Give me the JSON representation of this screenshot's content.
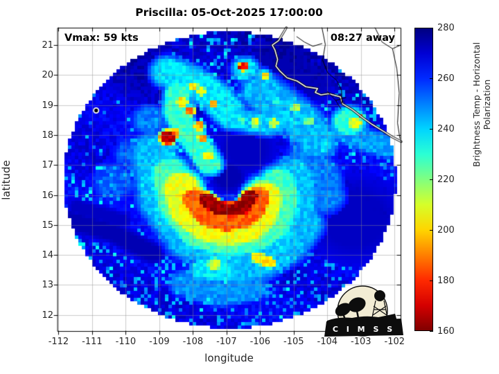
{
  "figure": {
    "title": "Priscilla: 05-Oct-2025 17:00:00",
    "vmax_label": "Vmax: 59 kts",
    "eta_label": "08:27 away"
  },
  "axes": {
    "xlabel": "longitude",
    "ylabel": "latitude",
    "xticks": [
      -112,
      -111,
      -110,
      -109,
      -108,
      -107,
      -106,
      -105,
      -104,
      -103,
      -102
    ],
    "yticks": [
      12,
      13,
      14,
      15,
      16,
      17,
      18,
      19,
      20,
      21
    ],
    "xlim": [
      -112.03,
      -101.82
    ],
    "ylim": [
      11.46,
      21.58
    ],
    "grid_color": "#8c8c8c"
  },
  "colorbar": {
    "label": "Brightness Temp - Horizontal Polarization",
    "ticks": [
      160,
      180,
      200,
      220,
      240,
      260,
      280
    ],
    "min": 160,
    "max": 280,
    "colormap": "jet_reversed"
  },
  "logo": {
    "name": "CIMSS",
    "text": "C I M S S",
    "bg": "#f2ecd4",
    "ink": "#0d0d0d"
  },
  "chart_data": {
    "type": "heatmap",
    "title": "Priscilla: 05-Oct-2025 17:00:00",
    "units": "K",
    "storm": {
      "name": "Priscilla",
      "datetime": "05-Oct-2025 17:00:00",
      "vmax_kts": 59,
      "overpass_offset": "08:27 away"
    },
    "value_range": [
      160,
      280
    ],
    "swath": {
      "center": [
        -106.9,
        16.5
      ],
      "radius_deg": 4.95
    },
    "background_temp": 266.5,
    "features": {
      "warm": [
        {
          "pos": [
            -106.95,
            16.62
          ],
          "w": 0.34,
          "t": 274
        },
        {
          "pts": [
            [
              -111.85,
              15.2
            ],
            [
              -110.4,
              14.75
            ],
            [
              -109.2,
              14.05
            ]
          ],
          "w": 0.22,
          "t": 274
        },
        {
          "pts": [
            [
              -111.45,
              15.6
            ],
            [
              -110.1,
              15.15
            ]
          ],
          "w": 0.16,
          "t": 272
        },
        {
          "pos": [
            -105.35,
            20.5
          ],
          "w": 0.6,
          "t": 274
        },
        {
          "pos": [
            -104.5,
            19.8
          ],
          "w": 0.45,
          "t": 273
        },
        {
          "pos": [
            -103.2,
            15.2
          ],
          "w": 0.9,
          "t": 272
        },
        {
          "pos": [
            -106.4,
            17.55
          ],
          "w": 0.55,
          "t": 272
        },
        {
          "pos": [
            -109.6,
            20.2
          ],
          "w": 0.6,
          "t": 271
        }
      ],
      "cold": [
        {
          "pts": [
            [
              -107.6,
              15.85
            ],
            [
              -107.25,
              15.55
            ],
            [
              -106.85,
              15.5
            ],
            [
              -106.5,
              15.6
            ],
            [
              -106.3,
              15.95
            ]
          ],
          "w": 0.2,
          "t": 163
        },
        {
          "pts": [
            [
              -107.95,
              15.85
            ],
            [
              -107.55,
              15.3
            ],
            [
              -107.0,
              15.15
            ],
            [
              -106.5,
              15.25
            ],
            [
              -106.2,
              15.55
            ],
            [
              -106.08,
              15.9
            ]
          ],
          "w": 0.33,
          "t": 186
        },
        {
          "pts": [
            [
              -108.35,
              16.2
            ],
            [
              -108.15,
              15.5
            ],
            [
              -107.6,
              15.0
            ],
            [
              -107.0,
              14.85
            ],
            [
              -106.4,
              14.95
            ],
            [
              -106.0,
              15.35
            ],
            [
              -105.88,
              15.9
            ]
          ],
          "w": 0.48,
          "t": 207
        },
        {
          "pts": [
            [
              -108.7,
              16.7
            ],
            [
              -108.5,
              15.6
            ],
            [
              -107.85,
              14.75
            ],
            [
              -107.0,
              14.5
            ],
            [
              -106.2,
              14.62
            ],
            [
              -105.6,
              15.05
            ],
            [
              -105.38,
              15.85
            ],
            [
              -105.45,
              16.35
            ]
          ],
          "w": 0.45,
          "t": 227
        },
        {
          "pts": [
            [
              -109.15,
              17.4
            ],
            [
              -108.95,
              15.8
            ],
            [
              -108.15,
              14.55
            ],
            [
              -107.0,
              14.12
            ],
            [
              -105.9,
              14.3
            ],
            [
              -105.15,
              14.95
            ],
            [
              -104.92,
              15.85
            ],
            [
              -105.0,
              16.6
            ]
          ],
          "w": 0.5,
          "t": 242
        },
        {
          "pts": [
            [
              -108.45,
              19.35
            ],
            [
              -108.5,
              18.75
            ],
            [
              -108.2,
              18.1
            ],
            [
              -107.75,
              17.5
            ],
            [
              -107.5,
              17.05
            ]
          ],
          "w": 0.3,
          "t": 229
        },
        {
          "pos": [
            -108.75,
            17.92
          ],
          "w": 0.2,
          "t": 167
        },
        {
          "pos": [
            -108.55,
            18.05
          ],
          "w": 0.14,
          "t": 196
        },
        {
          "pos": [
            -108.1,
            18.8
          ],
          "w": 0.13,
          "t": 187
        },
        {
          "pos": [
            -108.32,
            19.1
          ],
          "w": 0.14,
          "t": 203
        },
        {
          "pos": [
            -107.82,
            18.3
          ],
          "w": 0.13,
          "t": 196
        },
        {
          "pos": [
            -107.72,
            17.9
          ],
          "w": 0.12,
          "t": 192
        },
        {
          "pos": [
            -107.55,
            17.3
          ],
          "w": 0.12,
          "t": 203
        },
        {
          "pts": [
            [
              -108.75,
              20.1
            ],
            [
              -108.05,
              19.8
            ],
            [
              -107.35,
              19.3
            ],
            [
              -106.95,
              18.8
            ]
          ],
          "w": 0.38,
          "t": 238
        },
        {
          "pos": [
            -108.0,
            19.62
          ],
          "w": 0.13,
          "t": 201
        },
        {
          "pos": [
            -107.75,
            19.45
          ],
          "w": 0.12,
          "t": 207
        },
        {
          "pos": [
            -107.38,
            19.05
          ],
          "w": 0.1,
          "t": 194
        },
        {
          "pos": [
            -106.5,
            20.28
          ],
          "w": 0.12,
          "t": 172
        },
        {
          "pos": [
            -106.45,
            20.2
          ],
          "w": 0.3,
          "t": 239
        },
        {
          "pos": [
            -105.85,
            20.0
          ],
          "w": 0.1,
          "t": 196
        },
        {
          "pos": [
            -105.9,
            19.95
          ],
          "w": 0.2,
          "t": 241
        },
        {
          "pts": [
            [
              -106.9,
              18.55
            ],
            [
              -106.3,
              18.45
            ],
            [
              -105.75,
              18.35
            ],
            [
              -105.3,
              18.55
            ]
          ],
          "w": 0.28,
          "t": 241
        },
        {
          "pos": [
            -106.15,
            18.42
          ],
          "w": 0.12,
          "t": 210
        },
        {
          "pos": [
            -105.6,
            18.4
          ],
          "w": 0.12,
          "t": 212
        },
        {
          "pos": [
            -106.55,
            18.5
          ],
          "w": 0.1,
          "t": 226
        },
        {
          "pts": [
            [
              -105.95,
              19.45
            ],
            [
              -105.3,
              18.9
            ],
            [
              -104.7,
              18.4
            ],
            [
              -104.3,
              17.8
            ]
          ],
          "w": 0.45,
          "t": 243
        },
        {
          "pos": [
            -104.95,
            18.9
          ],
          "w": 0.12,
          "t": 215
        },
        {
          "pos": [
            -104.55,
            18.45
          ],
          "w": 0.12,
          "t": 221
        },
        {
          "pos": [
            -105.5,
            19.1
          ],
          "w": 0.1,
          "t": 226
        },
        {
          "pos": [
            -103.35,
            18.45
          ],
          "w": 0.38,
          "t": 231
        },
        {
          "pos": [
            -103.18,
            18.4
          ],
          "w": 0.17,
          "t": 209
        },
        {
          "pos": [
            -103.0,
            18.62
          ],
          "w": 0.07,
          "t": 183
        },
        {
          "pts": [
            [
              -103.6,
              18.15
            ],
            [
              -102.75,
              17.78
            ],
            [
              -102.2,
              17.62
            ]
          ],
          "w": 0.28,
          "t": 246
        },
        {
          "pts": [
            [
              -104.6,
              17.3
            ],
            [
              -104.15,
              16.6
            ],
            [
              -104.05,
              15.95
            ]
          ],
          "w": 0.4,
          "t": 250
        },
        {
          "pts": [
            [
              -106.7,
              13.55
            ],
            [
              -105.95,
              13.75
            ],
            [
              -105.2,
              14.25
            ],
            [
              -104.68,
              15.0
            ]
          ],
          "w": 0.42,
          "t": 243
        },
        {
          "pts": [
            [
              -106.08,
              13.92
            ],
            [
              -105.72,
              13.74
            ]
          ],
          "w": 0.15,
          "t": 202
        },
        {
          "pos": [
            -107.35,
            13.7
          ],
          "w": 0.17,
          "t": 212
        },
        {
          "pts": [
            [
              -107.75,
              13.52
            ],
            [
              -107.05,
              13.45
            ]
          ],
          "w": 0.26,
          "t": 237
        },
        {
          "pts": [
            [
              -108.25,
              13.05
            ],
            [
              -107.2,
              12.72
            ],
            [
              -106.2,
              12.92
            ]
          ],
          "w": 0.32,
          "t": 248
        },
        {
          "pos": [
            -110.35,
            16.45
          ],
          "w": 0.45,
          "t": 255
        },
        {
          "pos": [
            -109.75,
            17.35
          ],
          "w": 0.4,
          "t": 254
        },
        {
          "pos": [
            -109.3,
            18.5
          ],
          "w": 0.35,
          "t": 250
        },
        {
          "pos": [
            -106.0,
            16.3
          ],
          "w": 0.3,
          "t": 248
        }
      ]
    },
    "coastline": [
      [
        -105.22,
        21.58
      ],
      [
        -105.45,
        21.15
      ],
      [
        -105.64,
        21.0
      ],
      [
        -105.56,
        20.84
      ],
      [
        -105.48,
        20.52
      ],
      [
        -105.53,
        20.3
      ],
      [
        -105.4,
        20.12
      ],
      [
        -105.2,
        19.91
      ],
      [
        -104.9,
        19.8
      ],
      [
        -104.64,
        19.61
      ],
      [
        -104.29,
        19.55
      ],
      [
        -104.36,
        19.42
      ],
      [
        -104.19,
        19.34
      ],
      [
        -103.96,
        19.38
      ],
      [
        -103.61,
        19.27
      ],
      [
        -103.55,
        19.04
      ],
      [
        -103.26,
        18.85
      ],
      [
        -102.95,
        18.58
      ],
      [
        -102.66,
        18.35
      ],
      [
        -102.31,
        18.11
      ],
      [
        -102.06,
        17.93
      ],
      [
        -101.8,
        17.78
      ]
    ],
    "borders": [
      [
        [
          -104.16,
          21.58
        ],
        [
          -104.06,
          21.02
        ],
        [
          -104.14,
          20.5
        ],
        [
          -103.99,
          20.08
        ],
        [
          -103.72,
          19.82
        ],
        [
          -103.58,
          19.5
        ],
        [
          -103.56,
          19.06
        ]
      ],
      [
        [
          -102.58,
          21.58
        ],
        [
          -102.37,
          21.1
        ],
        [
          -102.06,
          20.88
        ],
        [
          -101.82,
          21.0
        ]
      ],
      [
        [
          -102.06,
          20.88
        ],
        [
          -101.93,
          20.2
        ],
        [
          -101.86,
          19.4
        ],
        [
          -101.91,
          18.4
        ],
        [
          -101.84,
          17.88
        ]
      ],
      [
        [
          -104.91,
          21.28
        ],
        [
          -104.68,
          21.1
        ],
        [
          -104.43,
          20.96
        ],
        [
          -104.16,
          21.05
        ]
      ],
      [
        [
          -104.0,
          19.45
        ],
        [
          -103.75,
          19.15
        ],
        [
          -103.45,
          19.25
        ]
      ],
      [
        [
          -103.75,
          19.15
        ],
        [
          -103.6,
          18.88
        ]
      ]
    ],
    "island": {
      "lon": -110.88,
      "lat": 18.82
    }
  }
}
